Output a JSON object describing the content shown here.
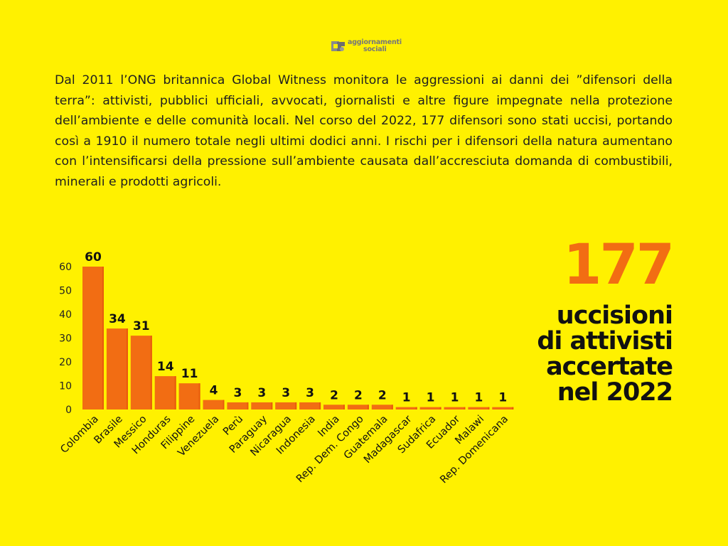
{
  "logo": {
    "line1": "aggiornamenti",
    "line2": "sociali",
    "icon": "logo-mark"
  },
  "intro_text": "Dal 2011 l’ONG britannica Global Witness monitora le aggressioni ai danni dei ”difensori della terra”: attivisti, pubblici ufficiali, avvocati, giornalisti e altre figure impegnate nella protezione dell’ambiente e delle comunità locali. Nel corso del 2022, 177 difensori sono stati uccisi, portando così a 1910 il numero totale negli ultimi dodici anni. I rischi per i difensori della natura aumentano con l’intensificarsi della pressione sull’ambiente causata dall’accresciuta domanda di combustibili, minerali e prodotti agricoli.",
  "highlight": {
    "number": "177",
    "lines": [
      "uccisioni",
      "di attivisti",
      "accertate",
      "nel 2022"
    ]
  },
  "colors": {
    "background": "#FFF100",
    "bar": "#F26D13",
    "bar_dark": "#E85A0C",
    "accent_number": "#F26D13",
    "text": "#111111"
  },
  "chart_data": {
    "type": "bar",
    "categories": [
      "Colombia",
      "Brasile",
      "Messico",
      "Honduras",
      "Filippine",
      "Venezuela",
      "Perù",
      "Paraguay",
      "Nicaragua",
      "Indonesia",
      "India",
      "Rep. Dem. Congo",
      "Guatemala",
      "Madagascar",
      "Sudafrica",
      "Ecuador",
      "Malawi",
      "Rep. Domenicana"
    ],
    "values": [
      60,
      34,
      31,
      14,
      11,
      4,
      3,
      3,
      3,
      3,
      2,
      2,
      2,
      1,
      1,
      1,
      1,
      1
    ],
    "y_ticks": [
      0,
      10,
      20,
      30,
      40,
      50,
      60
    ],
    "ylim": [
      0,
      60
    ],
    "title": "",
    "xlabel": "",
    "ylabel": "",
    "grid": false,
    "legend": "none",
    "data_labels": true
  }
}
